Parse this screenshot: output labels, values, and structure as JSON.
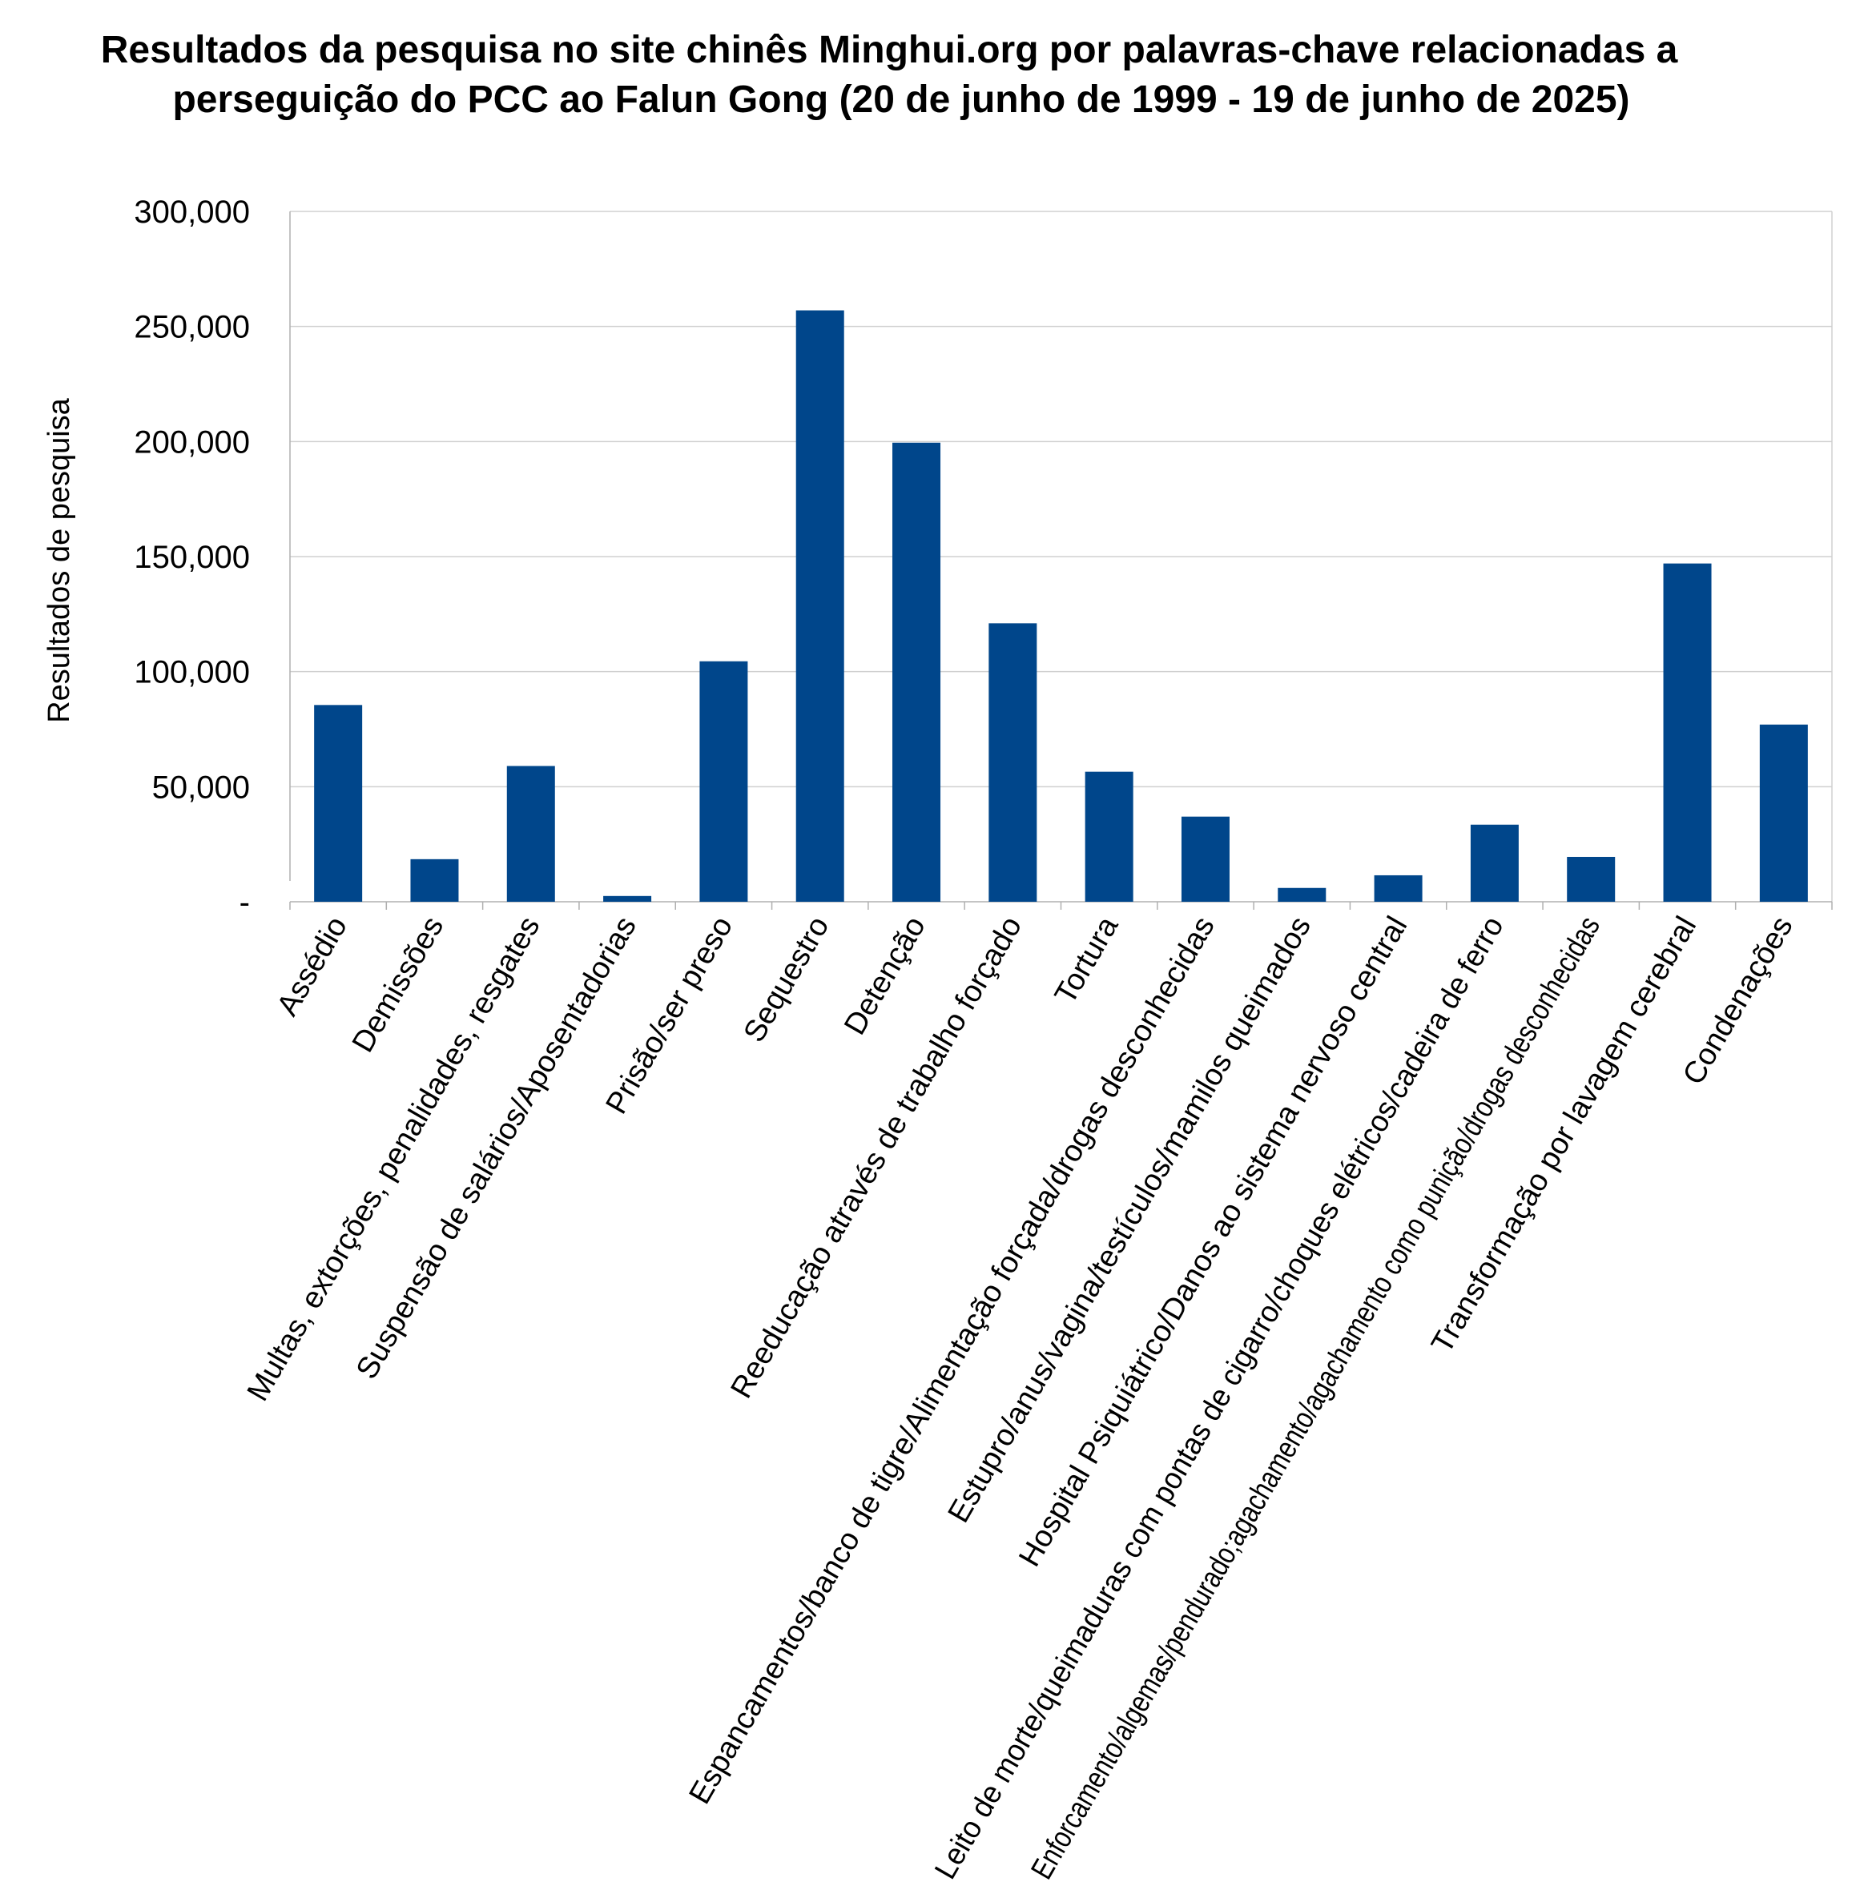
{
  "chart_data": {
    "type": "bar",
    "title": [
      "Resultados da pesquisa no site chinês Minghui.org por palavras-chave relacionadas a",
      "perseguição do PCC ao Falun Gong (20 de junho de 1999 - 19 de junho de 2025)"
    ],
    "ylabel": "Resultados de pesquisa",
    "xlabel": "",
    "ylim": [
      0,
      300000
    ],
    "yticks": [
      {
        "value": 0,
        "label": "-"
      },
      {
        "value": 50000,
        "label": "50,000"
      },
      {
        "value": 100000,
        "label": "100,000"
      },
      {
        "value": 150000,
        "label": "150,000"
      },
      {
        "value": 200000,
        "label": "200,000"
      },
      {
        "value": 250000,
        "label": "250,000"
      },
      {
        "value": 300000,
        "label": "300,000"
      }
    ],
    "grid": true,
    "bar_color": "#00468B",
    "categories": [
      "Assédio",
      "Demissões",
      "Multas, extorções, penalidades, resgates",
      "Suspensão de salários/Aposentadorias",
      "Prisão/ser preso",
      "Sequestro",
      "Detenção",
      "Reeducação através de trabalho forçado",
      "Tortura",
      "Espancamentos/banco de tigre/Alimentação forçada/drogas desconhecidas",
      "Estupro/anus/vagina/testículos/mamilos queimados",
      "Hospital Psiquiátrico/Danos ao sistema nervoso central",
      "Leito de morte/queimaduras com pontas de cigarro/choques elétricos/cadeira de ferro",
      "Enforcamento/algemas/pendurado;agachamento/agachamento como punição/drogas desconhecidas",
      "Transformação por lavagem cerebral",
      "Condenações"
    ],
    "values": [
      85500,
      18500,
      59000,
      2500,
      104500,
      257000,
      199500,
      121000,
      56500,
      37000,
      6000,
      11500,
      33500,
      19500,
      147000,
      77000
    ]
  }
}
